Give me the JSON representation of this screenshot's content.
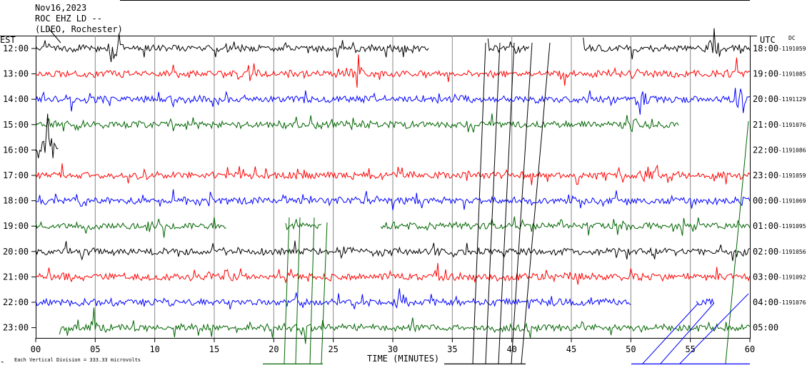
{
  "header": {
    "date": "Nov16,2023",
    "channel": "ROC EHZ LD --",
    "network": "(LDEO, Rochester)"
  },
  "left_axis_title": "EST",
  "right_axis_title": "UTC",
  "dc_label": "DC",
  "footer": {
    "scale_note": "Each Vertical Division =  333.33 microvolts"
  },
  "chart_data": {
    "type": "line",
    "title": "",
    "xlabel": "TIME (MINUTES)",
    "ylabel": "",
    "xlim": [
      0,
      60
    ],
    "x_ticks": [
      "00",
      "05",
      "10",
      "15",
      "20",
      "25",
      "30",
      "35",
      "40",
      "45",
      "50",
      "55",
      "60"
    ],
    "grid": "vertical lines every 5 minutes",
    "colors": {
      "black": "#000000",
      "red": "#ff0000",
      "blue": "#0000ff",
      "green": "#006400"
    },
    "traces": [
      {
        "est": "12:00",
        "utc": "18:00",
        "dc": "1191059",
        "color": "black",
        "segments": [
          [
            0,
            33
          ],
          [
            38,
            41.5
          ],
          [
            46,
            60
          ]
        ],
        "events": [
          [
            6.5,
            3
          ],
          [
            57,
            4
          ]
        ]
      },
      {
        "est": "13:00",
        "utc": "19:00",
        "dc": "1191085",
        "color": "red",
        "segments": [
          [
            0,
            60
          ]
        ],
        "events": [
          [
            27,
            1.5
          ],
          [
            58.5,
            1.5
          ]
        ]
      },
      {
        "est": "14:00",
        "utc": "20:00",
        "dc": "1191129",
        "color": "blue",
        "segments": [
          [
            0,
            60
          ]
        ],
        "events": [
          [
            51,
            1.6
          ],
          [
            59,
            1.4
          ]
        ]
      },
      {
        "est": "15:00",
        "utc": "21:00",
        "dc": "1191076",
        "color": "green",
        "segments": [
          [
            0,
            54
          ]
        ],
        "events": [
          [
            50,
            2.5
          ],
          [
            59.5,
            1.5
          ]
        ]
      },
      {
        "est": "16:00",
        "utc": "22:00",
        "dc": "1191086",
        "color": "black",
        "segments": [
          [
            0,
            1.9
          ]
        ],
        "events": [
          [
            1,
            5
          ]
        ]
      },
      {
        "est": "17:00",
        "utc": "23:00",
        "dc": "1191059",
        "color": "red",
        "segments": [
          [
            0,
            60
          ]
        ],
        "events": [
          [
            51.5,
            1.4
          ]
        ]
      },
      {
        "est": "18:00",
        "utc": "00:00",
        "dc": "1191069",
        "color": "blue",
        "segments": [
          [
            0,
            60
          ]
        ],
        "events": [
          [
            14,
            1.2
          ]
        ]
      },
      {
        "est": "19:00",
        "utc": "01:00",
        "dc": "1191095",
        "color": "green",
        "segments": [
          [
            0,
            16
          ],
          [
            21,
            24
          ],
          [
            29,
            60
          ]
        ],
        "events": [
          [
            9.5,
            1.2
          ]
        ]
      },
      {
        "est": "20:00",
        "utc": "02:00",
        "dc": "1191056",
        "color": "black",
        "segments": [
          [
            0,
            60
          ]
        ],
        "events": [
          [
            26,
            1.2
          ],
          [
            59,
            1.2
          ]
        ]
      },
      {
        "est": "21:00",
        "utc": "03:00",
        "dc": "1191092",
        "color": "red",
        "segments": [
          [
            0,
            60
          ]
        ],
        "events": [
          [
            16,
            1.3
          ],
          [
            33.5,
            1.2
          ]
        ]
      },
      {
        "est": "22:00",
        "utc": "04:00",
        "dc": "1191076",
        "color": "blue",
        "segments": [
          [
            0,
            50
          ],
          [
            55.5,
            57
          ],
          [
            60,
            60
          ]
        ],
        "events": [
          [
            30.5,
            1.2
          ]
        ]
      },
      {
        "est": "23:00",
        "utc": "05:00",
        "dc": "",
        "color": "green",
        "segments": [
          [
            2,
            60
          ]
        ],
        "events": [
          [
            5,
            1.3
          ],
          [
            22.5,
            1.3
          ]
        ]
      }
    ]
  }
}
